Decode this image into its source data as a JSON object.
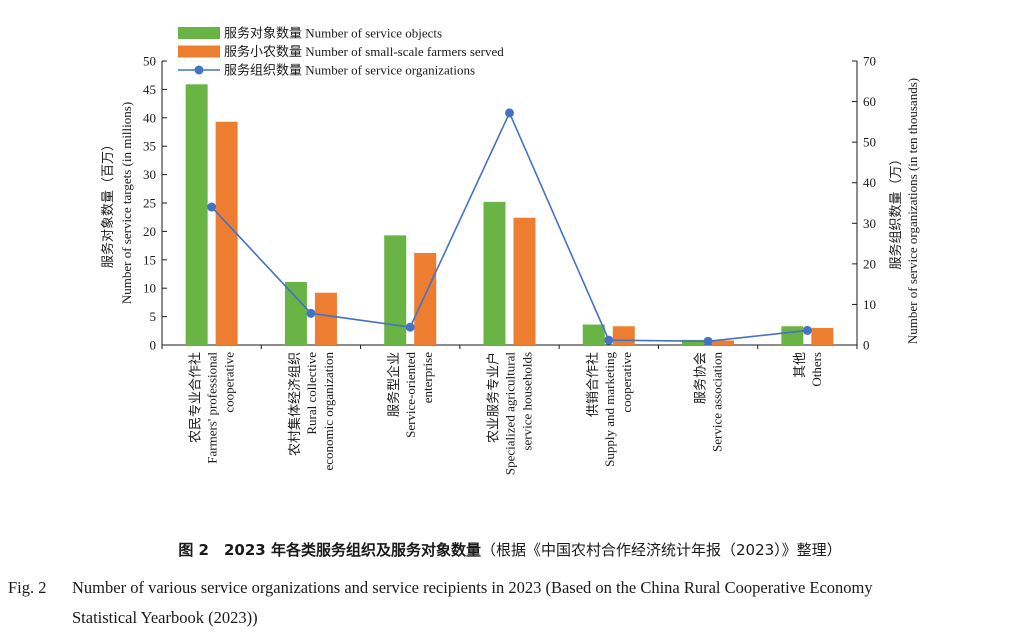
{
  "chart_data": {
    "type": "bar",
    "categories": [
      {
        "cn": "农民专业合作社",
        "en": [
          "Farmers' professional",
          "cooperative"
        ]
      },
      {
        "cn": "农村集体经济组织",
        "en": [
          "Rural collective",
          "economic organization"
        ]
      },
      {
        "cn": "服务型企业",
        "en": [
          "Service-oriented",
          "enterprise"
        ]
      },
      {
        "cn": "农业服务专业户",
        "en": [
          "Specialized agricultural",
          "service households"
        ]
      },
      {
        "cn": "供销合作社",
        "en": [
          "Supply and marketing",
          "cooperative"
        ]
      },
      {
        "cn": "服务协会",
        "en": [
          "Service association"
        ]
      },
      {
        "cn": "其他",
        "en": [
          "Others"
        ]
      }
    ],
    "series": [
      {
        "name": "服务对象数量 Number of service objects",
        "type": "bar",
        "axis": "left",
        "color": "#6ab446",
        "values": [
          45.9,
          11.1,
          19.3,
          25.2,
          3.6,
          0.9,
          3.3
        ]
      },
      {
        "name": "服务小农数量 Number of small-scale farmers served",
        "type": "bar",
        "axis": "left",
        "color": "#ed7d31",
        "values": [
          39.3,
          9.2,
          16.2,
          22.4,
          3.3,
          0.8,
          3.0
        ]
      },
      {
        "name": "服务组织数量 Number of service organizations",
        "type": "line",
        "axis": "right",
        "color": "#4472c4",
        "values": [
          34.0,
          7.8,
          4.4,
          57.2,
          1.2,
          0.9,
          3.6
        ]
      }
    ],
    "ylabel_left": [
      "服务对象数量（百万）",
      "Number of service targets (in millions)"
    ],
    "ylabel_right": [
      "服务组织数量（万）",
      "Number of service organizations (in ten thousands)"
    ],
    "ylim_left": [
      0,
      50
    ],
    "ylim_right": [
      0,
      70
    ],
    "yticks_left": [
      0,
      5,
      10,
      15,
      20,
      25,
      30,
      35,
      40,
      45,
      50
    ],
    "yticks_right": [
      0,
      10,
      20,
      30,
      40,
      50,
      60,
      70
    ],
    "legend_position": "top-left",
    "grid": false
  },
  "caption": {
    "cn_label": "图 2",
    "cn_title": "2023 年各类服务组织及服务对象数量",
    "cn_note": "（根据《中国农村合作经济统计年报（2023）》整理）",
    "en_label": "Fig. 2",
    "en_line1": "Number of various service organizations and service recipients in 2023 (Based on the China Rural Cooperative Economy",
    "en_line2": "Statistical Yearbook (2023))"
  }
}
